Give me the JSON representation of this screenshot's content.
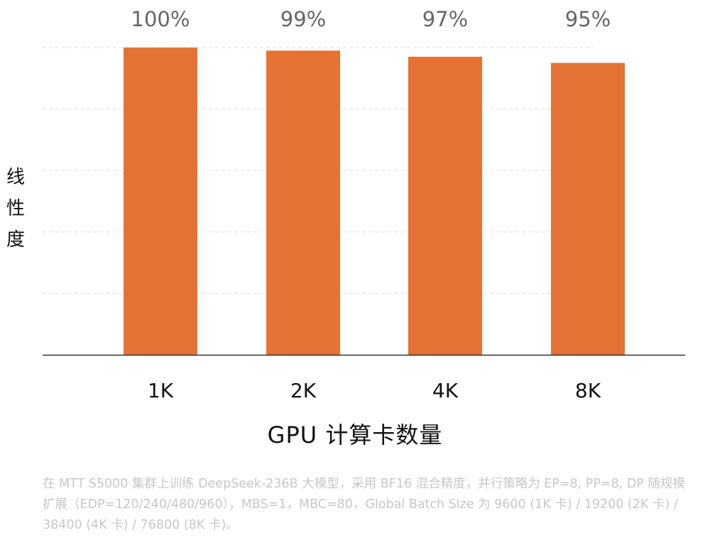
{
  "chart_data": {
    "type": "bar",
    "categories": [
      "1K",
      "2K",
      "4K",
      "8K"
    ],
    "values": [
      100,
      99,
      97,
      95
    ],
    "value_labels": [
      "100%",
      "99%",
      "97%",
      "95%"
    ],
    "xlabel": "GPU 计算卡数量",
    "ylabel": "线性度",
    "ylim": [
      0,
      100
    ],
    "grid": true,
    "bar_color": "#E57235",
    "grid_color": "#e2e2e2",
    "axis_color": "#333333"
  },
  "footnote": "在 MTT S5000 集群上训练 DeepSeek-236B 大模型，采用 BF16 混合精度，并行策略为 EP=8, PP=8, DP 随规模扩展（EDP=120/240/480/960），MBS=1，MBC=80，Global Batch Size 为 9600 (1K 卡) / 19200 (2K 卡) / 38400 (4K 卡) / 76800 (8K 卡)。"
}
